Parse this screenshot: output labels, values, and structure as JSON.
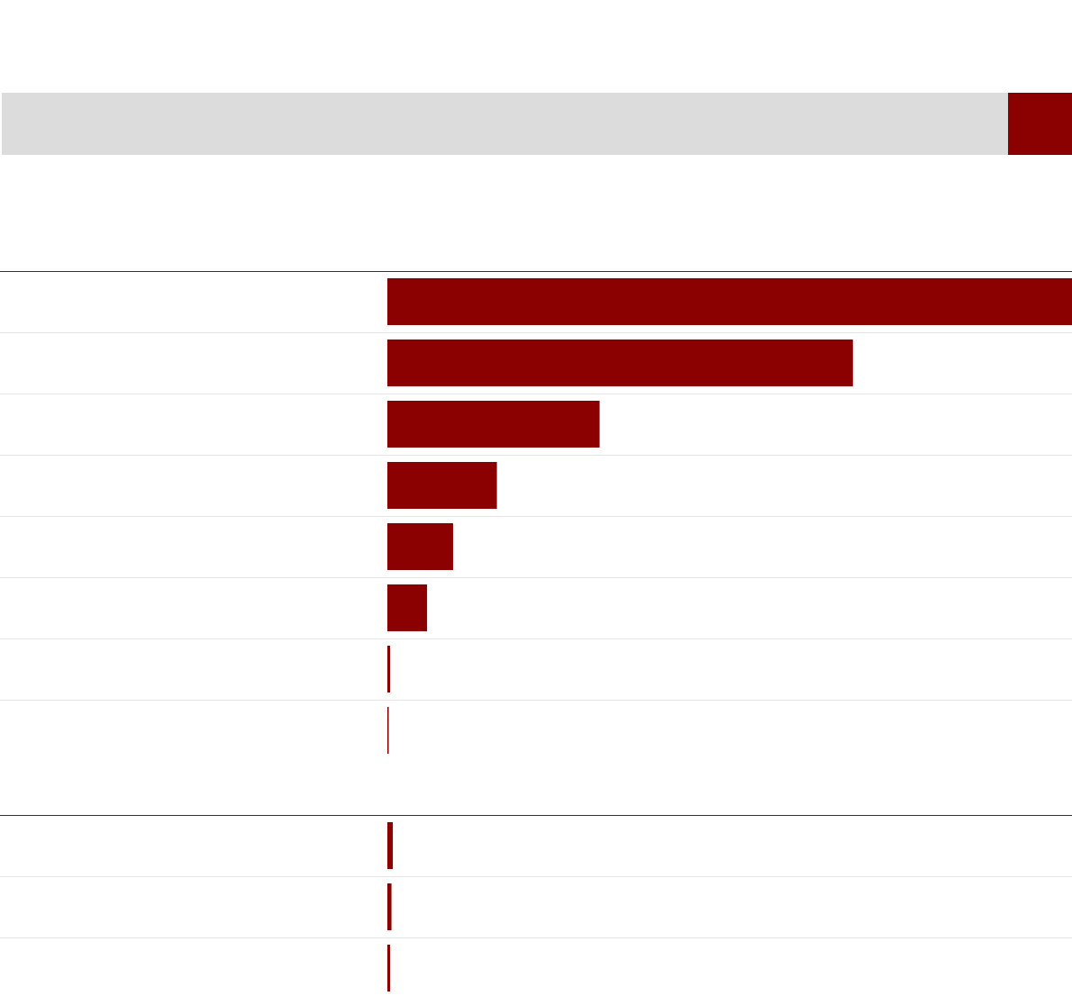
{
  "colors": {
    "accent": "#8b0000",
    "header_bar": "#dcdcdc",
    "row_divider": "#e4e4e4",
    "section_rule": "#333333"
  },
  "chart_data": {
    "type": "bar",
    "orientation": "horizontal",
    "title": "",
    "grid": false,
    "legend": "none",
    "sections": [
      {
        "categories": [
          "",
          "",
          "",
          "",
          "",
          "",
          "",
          ""
        ],
        "values": [
          100,
          68,
          31,
          16,
          9.6,
          5.8,
          0.4,
          0.2
        ]
      },
      {
        "categories": [
          "",
          "",
          ""
        ],
        "values": [
          0.8,
          0.6,
          0.4
        ]
      }
    ],
    "xlim": [
      0,
      100
    ]
  }
}
